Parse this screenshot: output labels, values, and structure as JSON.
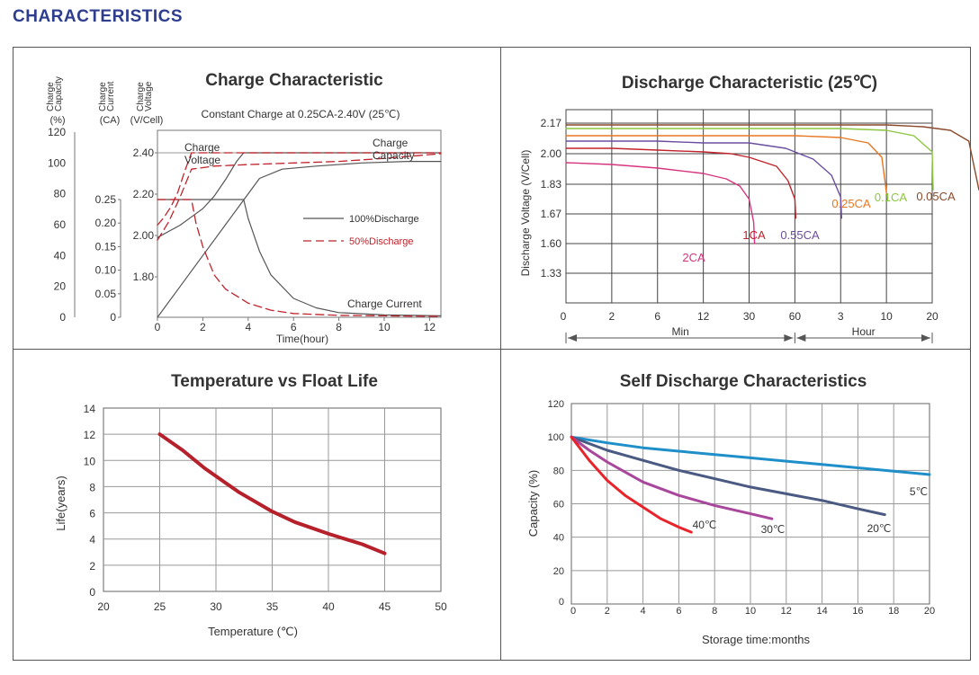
{
  "page": {
    "title": "CHARACTERISTICS"
  },
  "colors": {
    "title": "#2f3d8f",
    "red_dash": "#c0232c",
    "dark": "#555555"
  },
  "chart_data": [
    {
      "id": "charge",
      "type": "line",
      "title": "Charge Characteristic",
      "subtitle": "Constant Charge at 0.25CA-2.40V  (25℃)",
      "xlabel": "Time(hour)",
      "xlim": [
        0,
        12.5
      ],
      "xticks": [
        0,
        2,
        4,
        6,
        8,
        10,
        12
      ],
      "axes": [
        {
          "label": [
            "Charge",
            "Capacity",
            "(%)"
          ],
          "ticks": [
            "120",
            "100",
            "80",
            "60",
            "40",
            "20",
            "0"
          ]
        },
        {
          "label": [
            "Charge",
            "Current",
            "(CA)"
          ],
          "ticks": [
            "0.25",
            "0.20",
            "0.15",
            "0.10",
            "0.05",
            "0"
          ]
        },
        {
          "label": [
            "Charge",
            "Voltage",
            "(V/Cell)"
          ],
          "ticks": [
            "2.40",
            "2.20",
            "2.00",
            "1.80"
          ]
        }
      ],
      "annotations": [
        "Charge",
        "Voltage",
        "Charge",
        "Capacity",
        "Charge Current"
      ],
      "legend": [
        {
          "label": "100%Discharge",
          "style": "solid",
          "color": "#555555"
        },
        {
          "label": "50%Discharge",
          "style": "dashed",
          "color": "#c0232c"
        }
      ],
      "series": [
        {
          "name": "Voltage 100%",
          "style": "solid",
          "x": [
            0,
            0.5,
            1,
            1.5,
            2,
            2.5,
            3,
            3.5,
            3.8,
            12.5
          ],
          "y": [
            1.99,
            2.02,
            2.05,
            2.09,
            2.13,
            2.19,
            2.27,
            2.36,
            2.4,
            2.4
          ]
        },
        {
          "name": "Voltage 50%",
          "style": "dashed",
          "x": [
            0,
            0.3,
            0.6,
            0.9,
            1.2,
            1.5,
            12.5
          ],
          "y": [
            2.05,
            2.09,
            2.14,
            2.21,
            2.31,
            2.4,
            2.4
          ]
        },
        {
          "name": "Capacity 100%",
          "style": "solid",
          "x": [
            0,
            1,
            2,
            3,
            3.8,
            4.5,
            5.5,
            7,
            9,
            11,
            12.5
          ],
          "y": [
            0,
            20,
            40,
            60,
            76,
            90,
            96,
            98,
            100,
            101,
            101
          ]
        },
        {
          "name": "Capacity 50%",
          "style": "dashed",
          "x": [
            0,
            0.5,
            1,
            1.5,
            2.5,
            4,
            6,
            8,
            10,
            12.5
          ],
          "y": [
            50,
            62,
            78,
            96,
            98,
            99,
            100,
            101,
            103,
            106
          ]
        },
        {
          "name": "Current 100%",
          "style": "solid",
          "x": [
            0,
            3.8,
            4.0,
            4.5,
            5,
            6,
            7,
            8,
            10,
            12.5
          ],
          "y": [
            0.25,
            0.25,
            0.21,
            0.14,
            0.09,
            0.04,
            0.02,
            0.01,
            0.005,
            0.003
          ]
        },
        {
          "name": "Current 50%",
          "style": "dashed",
          "x": [
            0,
            1.5,
            1.7,
            2,
            2.5,
            3,
            4,
            5,
            6,
            8,
            10,
            12.5
          ],
          "y": [
            0.25,
            0.25,
            0.2,
            0.15,
            0.09,
            0.06,
            0.03,
            0.015,
            0.008,
            0.004,
            0.003,
            0.002
          ]
        }
      ]
    },
    {
      "id": "discharge",
      "type": "line",
      "title": "Discharge Characteristic (25℃)",
      "ylabel": "Discharge Voltage (V/Cell)",
      "yticks": [
        "2.17",
        "2.00",
        "1.83",
        "1.67",
        "1.60",
        "1.33"
      ],
      "xticks": [
        "0",
        "2",
        "6",
        "12",
        "30",
        "60",
        "3",
        "10",
        "20"
      ],
      "xgroups": [
        {
          "label": "Min"
        },
        {
          "label": "Hour"
        }
      ],
      "series": [
        {
          "name": "2CA",
          "color": "#d6347f",
          "x": [
            0,
            1,
            2,
            3,
            3.5,
            3.8,
            4.0,
            4.1,
            4.12
          ],
          "y": [
            1.95,
            1.94,
            1.92,
            1.89,
            1.86,
            1.82,
            1.75,
            1.65,
            1.6
          ]
        },
        {
          "name": "1CA",
          "color": "#c0232c",
          "x": [
            0,
            1,
            2,
            3,
            3.6,
            4.0,
            4.6,
            4.85,
            5.0,
            5.02
          ],
          "y": [
            2.03,
            2.03,
            2.02,
            2.01,
            2.0,
            1.98,
            1.93,
            1.85,
            1.75,
            1.66
          ]
        },
        {
          "name": "0.55CA",
          "color": "#6b4ea0",
          "x": [
            0,
            1,
            2,
            3,
            4,
            4.8,
            5.4,
            5.8,
            6.0,
            6.02
          ],
          "y": [
            2.07,
            2.07,
            2.07,
            2.06,
            2.06,
            2.03,
            1.97,
            1.88,
            1.76,
            1.66
          ]
        },
        {
          "name": "0.25CA",
          "color": "#e87722",
          "x": [
            0,
            2,
            4,
            5,
            6,
            6.6,
            6.9,
            7.02
          ],
          "y": [
            2.1,
            2.1,
            2.1,
            2.1,
            2.09,
            2.06,
            1.98,
            1.75
          ]
        },
        {
          "name": "0.1CA",
          "color": "#8cc63f",
          "x": [
            0,
            2,
            4,
            6,
            7,
            7.6,
            8.0,
            8.02
          ],
          "y": [
            2.14,
            2.14,
            2.14,
            2.14,
            2.13,
            2.1,
            2.01,
            1.8
          ]
        },
        {
          "name": "0.05CA",
          "color": "#8b4a2b",
          "x": [
            0,
            2,
            4,
            6,
            7,
            7.8,
            8.4,
            8.8,
            9.02
          ],
          "y": [
            2.16,
            2.16,
            2.16,
            2.16,
            2.16,
            2.15,
            2.13,
            2.07,
            1.8
          ]
        }
      ]
    },
    {
      "id": "float-life",
      "type": "line",
      "title": "Temperature vs Float Life",
      "xlabel": "Temperature (℃)",
      "ylabel": "Life(years)",
      "xlim": [
        20,
        50
      ],
      "ylim": [
        0,
        14
      ],
      "xticks": [
        "20",
        "25",
        "30",
        "35",
        "40",
        "45",
        "50"
      ],
      "yticks": [
        "0",
        "2",
        "4",
        "6",
        "8",
        "10",
        "12",
        "14"
      ],
      "series": [
        {
          "name": "Float life",
          "color": "#b5202a",
          "x": [
            25,
            27,
            29,
            32,
            35,
            37,
            40,
            43,
            45
          ],
          "y": [
            12,
            10.8,
            9.4,
            7.6,
            6.1,
            5.3,
            4.4,
            3.6,
            2.9
          ]
        }
      ]
    },
    {
      "id": "self-discharge",
      "type": "line",
      "title": "Self Discharge Characteristics",
      "xlabel": "Storage time:months",
      "ylabel": "Capacity (%)",
      "xlim": [
        0,
        20
      ],
      "ylim": [
        0,
        120
      ],
      "xticks": [
        "0",
        "2",
        "4",
        "6",
        "8",
        "10",
        "12",
        "14",
        "16",
        "18",
        "20"
      ],
      "yticks": [
        "0",
        "20",
        "40",
        "60",
        "80",
        "100",
        "120"
      ],
      "series": [
        {
          "name": "5℃",
          "color": "#1f8fc9",
          "x": [
            0,
            2,
            4,
            6,
            8,
            10,
            12,
            14,
            16,
            18,
            20
          ],
          "y": [
            100,
            96.5,
            93.5,
            91.5,
            89.5,
            87.5,
            85.5,
            83.5,
            81.5,
            79.5,
            77.5
          ]
        },
        {
          "name": "20℃",
          "color": "#4a5a82",
          "x": [
            0,
            2,
            4,
            6,
            8,
            10,
            12,
            14,
            16,
            17.5
          ],
          "y": [
            100,
            92,
            86,
            80,
            75,
            70,
            66,
            62,
            57,
            53.5
          ]
        },
        {
          "name": "30℃",
          "color": "#a8479c",
          "x": [
            0,
            1,
            2,
            3,
            4,
            6,
            8,
            10,
            11.2
          ],
          "y": [
            100,
            92,
            85,
            79,
            73,
            65,
            59,
            54,
            51
          ]
        },
        {
          "name": "40℃",
          "color": "#e8232a",
          "x": [
            0,
            1,
            2,
            3,
            4,
            5,
            6,
            6.7
          ],
          "y": [
            100,
            86,
            74,
            65,
            58,
            51,
            46,
            43
          ]
        }
      ]
    }
  ]
}
